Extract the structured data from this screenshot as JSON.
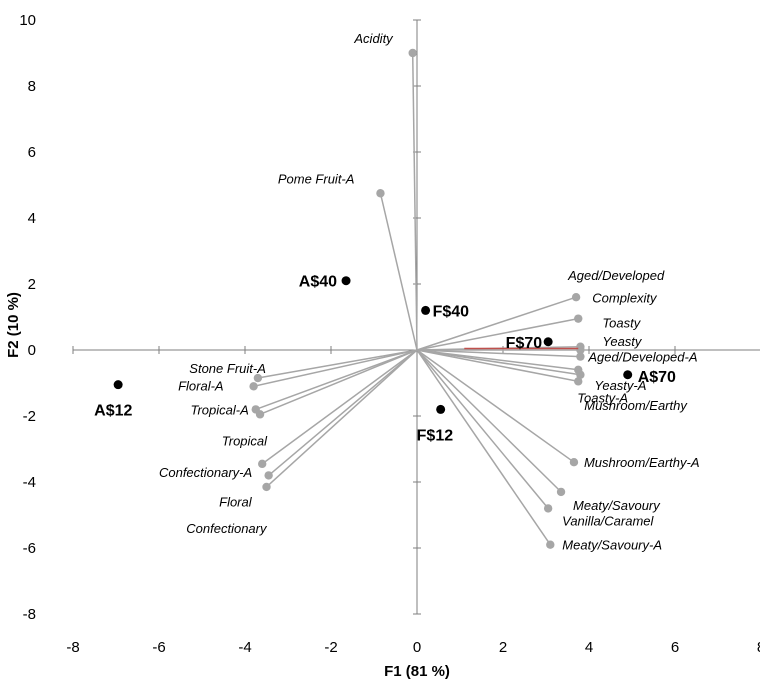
{
  "chart_data": {
    "type": "scatter",
    "subtype": "biplot",
    "xlabel": "F1 (81 %)",
    "ylabel": "F2 (10 %)",
    "xlim": [
      -8,
      8
    ],
    "ylim": [
      -8,
      10
    ],
    "x_ticks": [
      -8,
      -6,
      -4,
      -2,
      0,
      2,
      4,
      6,
      8
    ],
    "y_ticks": [
      -8,
      -6,
      -4,
      -2,
      0,
      2,
      4,
      6,
      8,
      10
    ],
    "variables": [
      {
        "label": "Acidity",
        "x": -0.1,
        "y": 9.0
      },
      {
        "label": "Pome Fruit-A",
        "x": -0.85,
        "y": 4.75
      },
      {
        "label": "Aged/Developed",
        "x": 3.7,
        "y": 1.6
      },
      {
        "label": "Complexity",
        "x": 3.75,
        "y": 0.95
      },
      {
        "label": "Toasty",
        "x": 3.8,
        "y": 0.1
      },
      {
        "label": "Yeasty",
        "x": 3.8,
        "y": 0.0
      },
      {
        "label": "Aged/Developed-A",
        "x": 3.8,
        "y": -0.2
      },
      {
        "label": "Yeasty-A",
        "x": 3.8,
        "y": -0.75
      },
      {
        "label": "Toasty-A",
        "x": 3.75,
        "y": -0.95
      },
      {
        "label": "Mushroom/Earthy",
        "x": 3.75,
        "y": -0.6
      },
      {
        "label": "Mushroom/Earthy-A",
        "x": 3.65,
        "y": -3.4
      },
      {
        "label": "Meaty/Savoury",
        "x": 3.35,
        "y": -4.3
      },
      {
        "label": "Vanilla/Caramel",
        "x": 3.05,
        "y": -4.8
      },
      {
        "label": "Meaty/Savoury-A",
        "x": 3.1,
        "y": -5.9
      },
      {
        "label": "Stone Fruit-A",
        "x": -3.7,
        "y": -0.85
      },
      {
        "label": "Floral-A",
        "x": -3.8,
        "y": -1.1
      },
      {
        "label": "Tropical-A",
        "x": -3.75,
        "y": -1.8
      },
      {
        "label": "Tropical",
        "x": -3.65,
        "y": -1.95
      },
      {
        "label": "Confectionary-A",
        "x": -3.6,
        "y": -3.45
      },
      {
        "label": "Floral",
        "x": -3.45,
        "y": -3.8
      },
      {
        "label": "Confectionary",
        "x": -3.5,
        "y": -4.15
      }
    ],
    "observations": [
      {
        "label": "A$12",
        "x": -6.95,
        "y": -1.05
      },
      {
        "label": "A$40",
        "x": -1.65,
        "y": 2.1
      },
      {
        "label": "F$40",
        "x": 0.2,
        "y": 1.2
      },
      {
        "label": "F$70",
        "x": 3.05,
        "y": 0.25
      },
      {
        "label": "A$70",
        "x": 4.9,
        "y": -0.75
      },
      {
        "label": "F$12",
        "x": 0.55,
        "y": -1.8
      }
    ],
    "grid": false,
    "legend": "none",
    "colors": {
      "vector": "#a6a6a6",
      "observation": "#000000",
      "highlight_vector": "#c0504d",
      "axis": "#7f7f7f"
    }
  }
}
